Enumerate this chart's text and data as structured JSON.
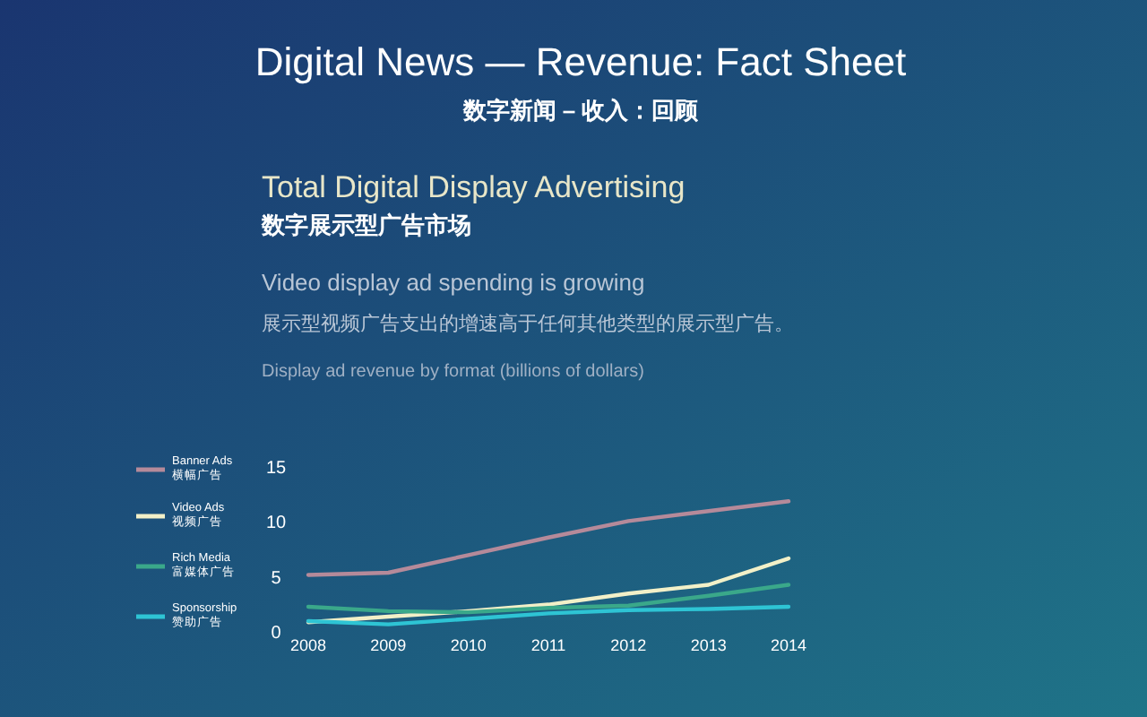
{
  "chart_data": {
    "type": "line",
    "title": "Digital News — Revenue: Fact Sheet",
    "subtitle": "数字新闻 – 收入：回顾",
    "annotations": [
      "Total Digital Display Advertising",
      "数字展示型广告市场",
      "Video display ad spending is growing",
      "展示型视频广告支出的增速高于任何其他类型的展示型广告。",
      "Display ad revenue by format (billions of dollars)"
    ],
    "categories": [
      "2008",
      "2009",
      "2010",
      "2011",
      "2012",
      "2013",
      "2014"
    ],
    "series": [
      {
        "name": "Banner Ads 横幅广告",
        "color": "#b58a9a",
        "values": [
          5.1,
          5.3,
          6.9,
          8.5,
          10.0,
          10.9,
          11.8
        ]
      },
      {
        "name": "Video Ads 视频广告",
        "color": "#f2f0c8",
        "values": [
          0.8,
          1.3,
          1.8,
          2.4,
          3.4,
          4.2,
          6.6
        ]
      },
      {
        "name": "Rich Media 富媒体广告",
        "color": "#3aa88a",
        "values": [
          2.2,
          1.8,
          1.7,
          2.1,
          2.3,
          3.2,
          4.2
        ]
      },
      {
        "name": "Sponsorship 赞助广告",
        "color": "#2ec4d4",
        "values": [
          0.9,
          0.6,
          1.1,
          1.6,
          1.9,
          2.0,
          2.2
        ]
      }
    ],
    "ylim": [
      0,
      15
    ],
    "yticks": [
      0,
      5,
      10,
      15
    ],
    "grid": false,
    "legend": "left",
    "marker": "none",
    "line_style": "solid"
  }
}
